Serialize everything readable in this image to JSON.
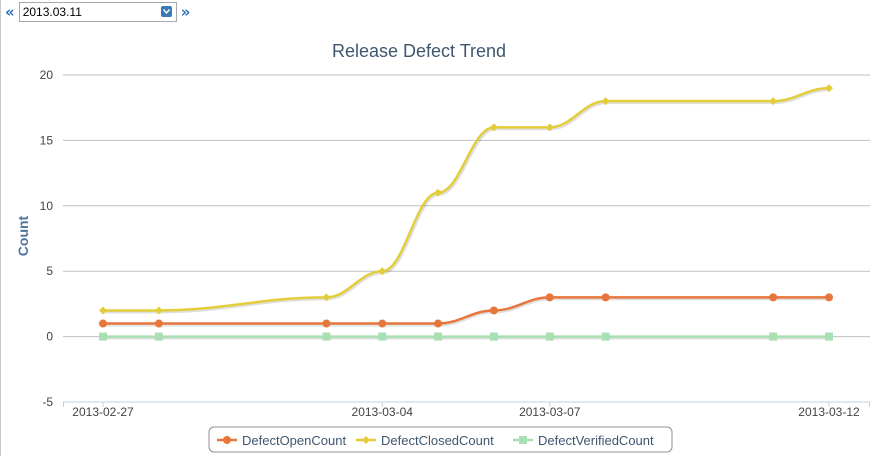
{
  "date_picker": {
    "prev_symbol": "«",
    "next_symbol": "»",
    "selected": "2013.03.11"
  },
  "colors": {
    "open": "#e6763c",
    "closed": "#e3cd3a",
    "verified": "#a9e0b3",
    "grid": "#c0c0c0",
    "title": "#3e576f"
  },
  "chart_data": {
    "type": "line",
    "title": "Release Defect Trend",
    "xlabel": "",
    "ylabel": "Count",
    "ylim": [
      -5,
      20
    ],
    "y_ticks": [
      -5,
      0,
      5,
      10,
      15,
      20
    ],
    "x": [
      "2013-02-27",
      "2013-02-28",
      "2013-03-03",
      "2013-03-04",
      "2013-03-05",
      "2013-03-06",
      "2013-03-07",
      "2013-03-08",
      "2013-03-11",
      "2013-03-12"
    ],
    "x_tick_labels": [
      "2013-02-27",
      "2013-03-04",
      "2013-03-07",
      "2013-03-12"
    ],
    "grid": true,
    "legend_position": "bottom-center",
    "series": [
      {
        "name": "DefectOpenCount",
        "marker": "circle",
        "values": [
          1,
          1,
          1,
          1,
          1,
          2,
          3,
          3,
          3,
          3
        ]
      },
      {
        "name": "DefectClosedCount",
        "marker": "diamond",
        "values": [
          2,
          2,
          3,
          5,
          11,
          16,
          16,
          18,
          18,
          19
        ]
      },
      {
        "name": "DefectVerifiedCount",
        "marker": "square",
        "values": [
          0,
          0,
          0,
          0,
          0,
          0,
          0,
          0,
          0,
          0
        ]
      }
    ]
  }
}
